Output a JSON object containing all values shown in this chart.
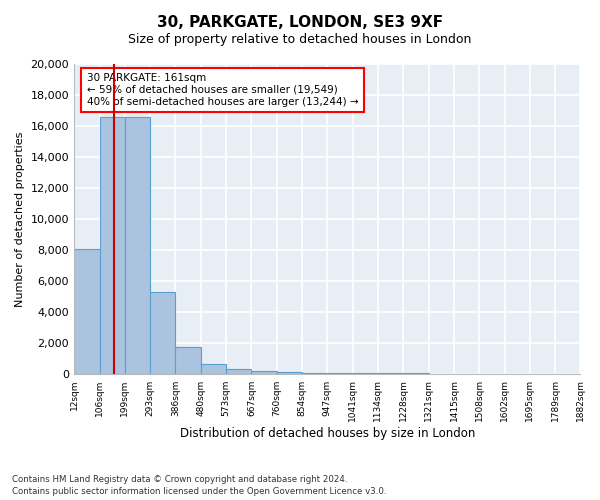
{
  "title1": "30, PARKGATE, LONDON, SE3 9XF",
  "title2": "Size of property relative to detached houses in London",
  "xlabel": "Distribution of detached houses by size in London",
  "ylabel": "Number of detached properties",
  "bar_color": "#aac4df",
  "bar_edge_color": "#5a9fd4",
  "annotation_line_color": "#cc0000",
  "annotation_box_text": "30 PARKGATE: 161sqm\n← 59% of detached houses are smaller (19,549)\n40% of semi-detached houses are larger (13,244) →",
  "property_size_sqm": 161,
  "footnote1": "Contains HM Land Registry data © Crown copyright and database right 2024.",
  "footnote2": "Contains public sector information licensed under the Open Government Licence v3.0.",
  "bin_edges": [
    12,
    106,
    199,
    293,
    386,
    480,
    573,
    667,
    760,
    854,
    947,
    1041,
    1134,
    1228,
    1321,
    1415,
    1508,
    1602,
    1695,
    1789,
    1882
  ],
  "counts": [
    8100,
    16600,
    16600,
    5300,
    1800,
    650,
    350,
    220,
    150,
    120,
    100,
    90,
    80,
    70,
    60,
    50,
    40,
    30,
    20,
    15
  ],
  "ylim": [
    0,
    20000
  ],
  "yticks": [
    0,
    2000,
    4000,
    6000,
    8000,
    10000,
    12000,
    14000,
    16000,
    18000,
    20000
  ],
  "background_color": "#e8eef5"
}
